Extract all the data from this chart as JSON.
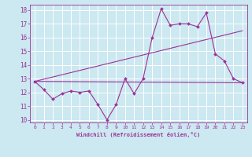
{
  "background_color": "#cce8f0",
  "grid_color": "#ffffff",
  "line_color": "#993399",
  "marker_color": "#993399",
  "xlabel": "Windchill (Refroidissement éolien,°C)",
  "xlim": [
    -0.5,
    23.5
  ],
  "ylim": [
    9.8,
    18.4
  ],
  "xticks": [
    0,
    1,
    2,
    3,
    4,
    5,
    6,
    7,
    8,
    9,
    10,
    11,
    12,
    13,
    14,
    15,
    16,
    17,
    18,
    19,
    20,
    21,
    22,
    23
  ],
  "yticks": [
    10,
    11,
    12,
    13,
    14,
    15,
    16,
    17,
    18
  ],
  "line1_x": [
    0,
    1,
    2,
    3,
    4,
    5,
    6,
    7,
    8,
    9,
    10,
    11,
    12,
    13,
    14,
    15,
    16,
    17,
    18,
    19,
    20,
    21,
    22,
    23
  ],
  "line1_y": [
    12.8,
    12.2,
    11.5,
    11.9,
    12.1,
    12.0,
    12.1,
    11.1,
    10.0,
    11.1,
    13.0,
    11.9,
    13.0,
    16.0,
    18.1,
    16.9,
    17.0,
    17.0,
    16.8,
    17.8,
    14.8,
    14.3,
    13.0,
    12.7
  ],
  "line2_x": [
    0,
    23
  ],
  "line2_y": [
    12.8,
    12.7
  ],
  "line3_x": [
    0,
    23
  ],
  "line3_y": [
    12.8,
    16.5
  ]
}
